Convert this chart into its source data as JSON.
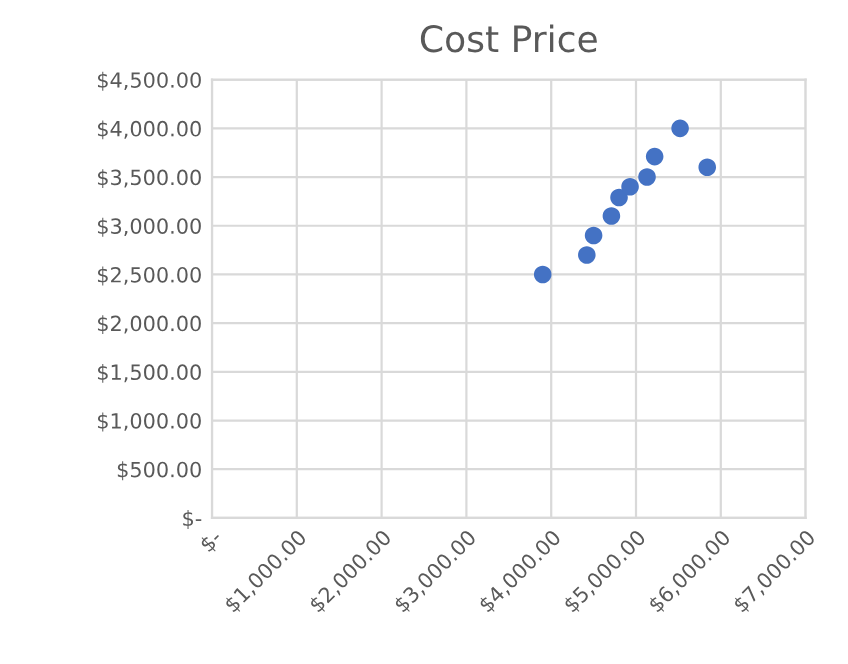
{
  "chart_data": {
    "type": "scatter",
    "title": "Cost Price",
    "x": [
      3900,
      4420,
      4500,
      4710,
      4800,
      4930,
      5130,
      5220,
      5520,
      5840
    ],
    "series": [
      {
        "color": "#4472c4",
        "values": [
          2500,
          2700,
          2900,
          3100,
          3290,
          3400,
          3500,
          3710,
          4000,
          3600
        ]
      }
    ],
    "xlim": [
      0,
      7000
    ],
    "xticks": [
      {
        "value": 0,
        "label": "$-"
      },
      {
        "value": 1000,
        "label": "$1,000.00"
      },
      {
        "value": 2000,
        "label": "$2,000.00"
      },
      {
        "value": 3000,
        "label": "$3,000.00"
      },
      {
        "value": 4000,
        "label": "$4,000.00"
      },
      {
        "value": 5000,
        "label": "$5,000.00"
      },
      {
        "value": 6000,
        "label": "$6,000.00"
      },
      {
        "value": 7000,
        "label": "$7,000.00"
      }
    ],
    "ylim": [
      0,
      4500
    ],
    "yticks": [
      {
        "value": 0,
        "label": "$-"
      },
      {
        "value": 500,
        "label": "$500.00"
      },
      {
        "value": 1000,
        "label": "$1,000.00"
      },
      {
        "value": 1500,
        "label": "$1,500.00"
      },
      {
        "value": 2000,
        "label": "$2,000.00"
      },
      {
        "value": 2500,
        "label": "$2,500.00"
      },
      {
        "value": 3000,
        "label": "$3,000.00"
      },
      {
        "value": 3500,
        "label": "$3,500.00"
      },
      {
        "value": 4000,
        "label": "$4,000.00"
      },
      {
        "value": 4500,
        "label": "$4,500.00"
      }
    ],
    "grid": true,
    "marker": "circle"
  }
}
